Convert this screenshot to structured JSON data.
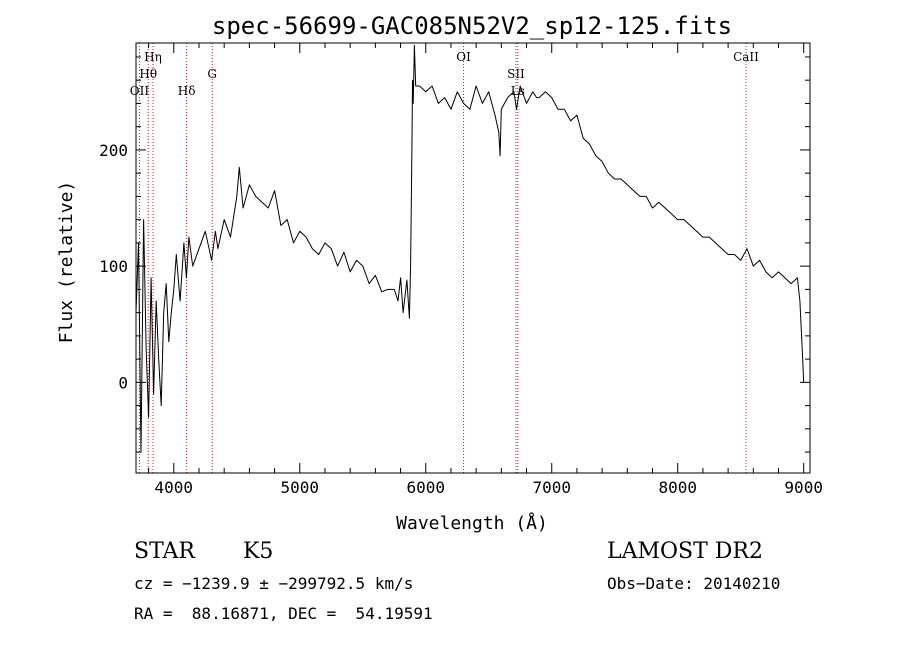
{
  "chart_data": {
    "type": "line",
    "title": "spec-56699-GAC085N52V2_sp12-125.fits",
    "xlabel": "Wavelength (Å)",
    "ylabel": "Flux (relative)",
    "xlim": [
      3700,
      9050
    ],
    "ylim": [
      -78,
      292
    ],
    "xticks": [
      4000,
      5000,
      6000,
      7000,
      8000,
      9000
    ],
    "yticks": [
      0,
      100,
      200
    ],
    "grid": false,
    "line_color": "#000000",
    "marker_color": "#b22222",
    "series": [
      {
        "x": [
          3700,
          3720,
          3740,
          3760,
          3780,
          3800,
          3820,
          3840,
          3860,
          3880,
          3900,
          3920,
          3940,
          3960,
          3980,
          4000,
          4020,
          4050,
          4080,
          4100,
          4120,
          4150,
          4200,
          4250,
          4300,
          4330,
          4350,
          4400,
          4450,
          4500,
          4520,
          4550,
          4600,
          4650,
          4700,
          4750,
          4800,
          4850,
          4900,
          4950,
          5000,
          5050,
          5100,
          5150,
          5200,
          5250,
          5300,
          5350,
          5400,
          5450,
          5500,
          5550,
          5600,
          5650,
          5700,
          5750,
          5780,
          5800,
          5820,
          5850,
          5870,
          5880,
          5890,
          5895,
          5900,
          5910,
          5920,
          5950,
          6000,
          6050,
          6100,
          6150,
          6200,
          6250,
          6300,
          6350,
          6400,
          6450,
          6500,
          6550,
          6580,
          6590,
          6600,
          6650,
          6700,
          6720,
          6750,
          6800,
          6850,
          6880,
          6900,
          6950,
          7000,
          7050,
          7100,
          7150,
          7200,
          7250,
          7300,
          7350,
          7400,
          7450,
          7500,
          7550,
          7600,
          7650,
          7700,
          7750,
          7800,
          7850,
          7900,
          7950,
          8000,
          8050,
          8100,
          8150,
          8200,
          8250,
          8300,
          8350,
          8400,
          8450,
          8500,
          8550,
          8600,
          8650,
          8700,
          8750,
          8800,
          8850,
          8900,
          8950,
          8970,
          8990,
          9000
        ],
        "values": [
          60,
          120,
          -60,
          140,
          30,
          -30,
          90,
          -10,
          70,
          20,
          -20,
          60,
          85,
          35,
          60,
          80,
          110,
          70,
          120,
          90,
          125,
          100,
          115,
          130,
          105,
          130,
          115,
          140,
          125,
          160,
          185,
          150,
          170,
          160,
          155,
          150,
          165,
          135,
          140,
          120,
          130,
          125,
          115,
          110,
          120,
          115,
          100,
          112,
          95,
          105,
          100,
          85,
          92,
          78,
          80,
          80,
          70,
          90,
          60,
          88,
          55,
          100,
          200,
          260,
          240,
          290,
          255,
          255,
          250,
          255,
          240,
          245,
          235,
          250,
          240,
          235,
          255,
          240,
          250,
          230,
          215,
          195,
          235,
          245,
          250,
          235,
          255,
          240,
          250,
          245,
          245,
          250,
          245,
          235,
          235,
          225,
          230,
          210,
          205,
          195,
          190,
          180,
          175,
          175,
          170,
          165,
          160,
          160,
          150,
          155,
          150,
          145,
          140,
          140,
          135,
          130,
          125,
          125,
          120,
          115,
          110,
          110,
          105,
          115,
          100,
          105,
          95,
          90,
          95,
          90,
          85,
          90,
          70,
          25,
          0
        ]
      }
    ],
    "line_markers": [
      {
        "label": "OII",
        "x": 3727,
        "row": 3
      },
      {
        "label": "Hη",
        "x": 3835,
        "row": 1
      },
      {
        "label": "Hθ",
        "x": 3797,
        "row": 2
      },
      {
        "label": "Hδ",
        "x": 4102,
        "row": 3
      },
      {
        "label": "G",
        "x": 4305,
        "row": 2
      },
      {
        "label": "OI",
        "x": 6300,
        "row": 1
      },
      {
        "label": "SII",
        "x": 6716,
        "row": 2
      },
      {
        "label": "Ls",
        "x": 6731,
        "row": 3
      },
      {
        "label": "CaII",
        "x": 8542,
        "row": 1
      }
    ]
  },
  "info": {
    "object_class": "STAR",
    "subclass": "K5",
    "survey": "LAMOST DR2",
    "cz": "cz = −1239.9 ± −299792.5 km/s",
    "obs_date": "Obs−Date: 20140210",
    "radec": "RA =  88.16871, DEC =  54.19591"
  }
}
